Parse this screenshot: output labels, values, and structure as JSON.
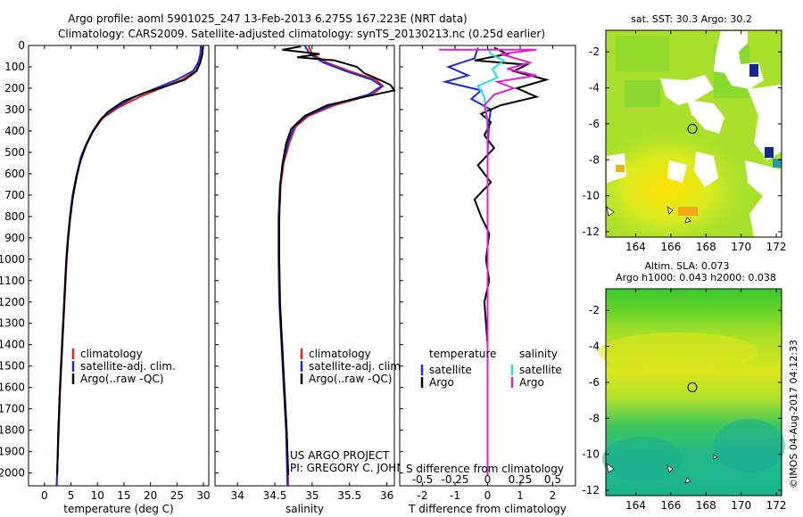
{
  "header": {
    "line1": "Argo profile: aoml 5901025_247 13-Feb-2013 6.275S 167.223E (NRT data)",
    "line2": "Climatology: CARS2009. Satellite-adjusted climatology: synTS_20130213.nc (0.25d earlier)"
  },
  "colors": {
    "climatology": "#e8201e",
    "satellite": "#1c2bd6",
    "argo": "#000000",
    "sal_satellite": "#22e0e0",
    "sal_argo": "#e020d0"
  },
  "chart_data": [
    {
      "type": "line",
      "name": "temperature-profile",
      "xlabel": "temperature (deg C)",
      "ylabel": "",
      "xlim": [
        -3,
        31
      ],
      "ylim": [
        2060,
        0
      ],
      "xticks": [
        0,
        5,
        10,
        15,
        20,
        25,
        30
      ],
      "yticks": [
        0,
        100,
        200,
        300,
        400,
        500,
        600,
        700,
        800,
        900,
        1000,
        1100,
        1200,
        1300,
        1400,
        1500,
        1600,
        1700,
        1800,
        1900,
        2000
      ],
      "legend": [
        "climatology",
        "satellite-adj. clim.",
        "Argo(..raw -QC)"
      ],
      "legend_position": "lower-center",
      "series": [
        {
          "name": "climatology",
          "color": "#e8201e",
          "points": [
            [
              29.8,
              0
            ],
            [
              29.7,
              40
            ],
            [
              29.3,
              80
            ],
            [
              28.5,
              120
            ],
            [
              26,
              160
            ],
            [
              22,
              200
            ],
            [
              18,
              240
            ],
            [
              14,
              290
            ],
            [
              11,
              340
            ],
            [
              9.2,
              400
            ],
            [
              8,
              460
            ],
            [
              7,
              520
            ],
            [
              6.2,
              600
            ],
            [
              5.4,
              700
            ],
            [
              4.9,
              800
            ],
            [
              4.5,
              900
            ],
            [
              4.2,
              1000
            ],
            [
              3.8,
              1200
            ],
            [
              3.4,
              1400
            ],
            [
              3.0,
              1600
            ],
            [
              2.7,
              1800
            ],
            [
              2.4,
              2000
            ],
            [
              2.3,
              2060
            ]
          ]
        },
        {
          "name": "satellite-adj. clim.",
          "color": "#1c2bd6",
          "points": [
            [
              29.5,
              0
            ],
            [
              29.4,
              40
            ],
            [
              29.0,
              80
            ],
            [
              28,
              120
            ],
            [
              25,
              160
            ],
            [
              21,
              200
            ],
            [
              17,
              240
            ],
            [
              13.5,
              290
            ],
            [
              10.8,
              340
            ],
            [
              9.1,
              400
            ],
            [
              7.9,
              460
            ],
            [
              6.9,
              520
            ],
            [
              6.1,
              600
            ],
            [
              5.3,
              700
            ],
            [
              4.8,
              800
            ],
            [
              4.4,
              900
            ],
            [
              4.1,
              1000
            ],
            [
              3.7,
              1200
            ],
            [
              3.3,
              1400
            ],
            [
              2.9,
              1600
            ],
            [
              2.6,
              1800
            ],
            [
              2.4,
              2000
            ],
            [
              2.3,
              2060
            ]
          ]
        },
        {
          "name": "Argo(..raw -QC)",
          "color": "#000000",
          "points": [
            [
              29.9,
              5
            ],
            [
              29.8,
              40
            ],
            [
              29.4,
              80
            ],
            [
              28.7,
              120
            ],
            [
              26.5,
              160
            ],
            [
              23,
              190
            ],
            [
              19,
              220
            ],
            [
              15,
              260
            ],
            [
              12,
              310
            ],
            [
              10.5,
              350
            ],
            [
              9,
              410
            ],
            [
              7.8,
              470
            ],
            [
              6.8,
              540
            ],
            [
              6,
              620
            ],
            [
              5.3,
              720
            ],
            [
              4.8,
              820
            ],
            [
              4.4,
              920
            ],
            [
              4.1,
              1020
            ],
            [
              3.7,
              1220
            ],
            [
              3.3,
              1420
            ],
            [
              2.9,
              1620
            ],
            [
              2.6,
              1820
            ],
            [
              2.4,
              2010
            ]
          ]
        }
      ]
    },
    {
      "type": "line",
      "name": "salinity-profile",
      "xlabel": "salinity",
      "xlim": [
        33.7,
        36.1
      ],
      "ylim": [
        2060,
        0
      ],
      "xticks": [
        34,
        34.5,
        35,
        35.5,
        36
      ],
      "legend": [
        "climatology",
        "satellite-adj. clim.",
        "Argo(..raw -QC)"
      ],
      "legend_position": "lower-center",
      "annotation": [
        "US ARGO PROJECT",
        "PI: GREGORY C. JOHNSON"
      ],
      "series": [
        {
          "name": "climatology",
          "color": "#e8201e",
          "points": [
            [
              34.95,
              0
            ],
            [
              35.0,
              40
            ],
            [
              35.2,
              80
            ],
            [
              35.5,
              120
            ],
            [
              35.85,
              160
            ],
            [
              35.95,
              190
            ],
            [
              35.8,
              230
            ],
            [
              35.3,
              280
            ],
            [
              34.95,
              330
            ],
            [
              34.78,
              380
            ],
            [
              34.7,
              450
            ],
            [
              34.62,
              550
            ],
            [
              34.58,
              650
            ],
            [
              34.56,
              800
            ],
            [
              34.56,
              1000
            ],
            [
              34.57,
              1200
            ],
            [
              34.6,
              1400
            ],
            [
              34.63,
              1600
            ],
            [
              34.66,
              1800
            ],
            [
              34.68,
              2060
            ]
          ]
        },
        {
          "name": "satellite-adj. clim.",
          "color": "#1c2bd6",
          "points": [
            [
              34.9,
              0
            ],
            [
              34.97,
              40
            ],
            [
              35.15,
              80
            ],
            [
              35.45,
              120
            ],
            [
              35.8,
              160
            ],
            [
              35.93,
              190
            ],
            [
              35.75,
              230
            ],
            [
              35.25,
              280
            ],
            [
              34.92,
              330
            ],
            [
              34.76,
              380
            ],
            [
              34.68,
              450
            ],
            [
              34.61,
              550
            ],
            [
              34.57,
              650
            ],
            [
              34.55,
              800
            ],
            [
              34.55,
              1000
            ],
            [
              34.56,
              1200
            ],
            [
              34.59,
              1400
            ],
            [
              34.62,
              1600
            ],
            [
              34.65,
              1800
            ],
            [
              34.67,
              2060
            ]
          ]
        },
        {
          "name": "Argo(..raw -QC)",
          "color": "#000000",
          "points": [
            [
              34.85,
              5
            ],
            [
              34.6,
              20
            ],
            [
              35.1,
              40
            ],
            [
              34.8,
              55
            ],
            [
              35.3,
              70
            ],
            [
              35.6,
              100
            ],
            [
              35.7,
              130
            ],
            [
              35.9,
              160
            ],
            [
              36.05,
              185
            ],
            [
              36.1,
              210
            ],
            [
              35.7,
              240
            ],
            [
              35.2,
              280
            ],
            [
              34.9,
              330
            ],
            [
              34.72,
              390
            ],
            [
              34.65,
              460
            ],
            [
              34.6,
              560
            ],
            [
              34.57,
              660
            ],
            [
              34.56,
              820
            ],
            [
              34.56,
              1020
            ],
            [
              34.57,
              1220
            ],
            [
              34.6,
              1420
            ],
            [
              34.63,
              1620
            ],
            [
              34.66,
              1820
            ],
            [
              34.68,
              2010
            ]
          ]
        }
      ]
    },
    {
      "type": "line",
      "name": "difference-profile",
      "xlabel": "T difference from climatology",
      "xlabel2": "S difference from climatology",
      "xlim": [
        -2.7,
        2.7
      ],
      "ylim": [
        2060,
        0
      ],
      "xticks": [
        -2,
        -1,
        0,
        1,
        2
      ],
      "xticks_sal": [
        -0.5,
        -0.25,
        0,
        0.25,
        0.5
      ],
      "legend_temp_title": "temperature",
      "legend_sal_title": "salinity",
      "legend_temp": [
        "satellite",
        "Argo"
      ],
      "legend_sal": [
        "satellite",
        "Argo"
      ],
      "series": [
        {
          "name": "T satellite",
          "color": "#1c2bd6",
          "points": [
            [
              -0.3,
              10
            ],
            [
              -0.4,
              60
            ],
            [
              -1.2,
              100
            ],
            [
              -0.6,
              140
            ],
            [
              -1.3,
              170
            ],
            [
              -0.2,
              210
            ],
            [
              -0.5,
              250
            ],
            [
              0.1,
              300
            ],
            [
              0.05,
              350
            ],
            [
              0,
              500
            ],
            [
              0,
              1000
            ],
            [
              0,
              1500
            ],
            [
              0,
              2010
            ]
          ]
        },
        {
          "name": "T Argo",
          "color": "#000000",
          "points": [
            [
              0.2,
              10
            ],
            [
              0.6,
              40
            ],
            [
              -0.4,
              70
            ],
            [
              1.2,
              90
            ],
            [
              0.8,
              120
            ],
            [
              1.8,
              160
            ],
            [
              0.9,
              200
            ],
            [
              1.5,
              240
            ],
            [
              0.4,
              280
            ],
            [
              -0.2,
              320
            ],
            [
              0.1,
              360
            ],
            [
              -0.1,
              420
            ],
            [
              0.2,
              480
            ],
            [
              -0.3,
              560
            ],
            [
              0.1,
              640
            ],
            [
              -0.4,
              720
            ],
            [
              -0.2,
              800
            ],
            [
              0.05,
              880
            ],
            [
              -0.05,
              1000
            ],
            [
              0.05,
              1100
            ],
            [
              -0.1,
              1200
            ],
            [
              0,
              1400
            ],
            [
              0,
              1700
            ],
            [
              0,
              2010
            ]
          ]
        },
        {
          "name": "S satellite",
          "color": "#22e0e0",
          "points": [
            [
              0,
              10
            ],
            [
              0.1,
              40
            ],
            [
              0.5,
              70
            ],
            [
              0.15,
              110
            ],
            [
              0.3,
              150
            ],
            [
              -0.3,
              190
            ],
            [
              -0.1,
              240
            ],
            [
              -0.05,
              300
            ],
            [
              0,
              400
            ],
            [
              0,
              800
            ],
            [
              0,
              1400
            ],
            [
              0,
              2010
            ]
          ]
        },
        {
          "name": "S Argo",
          "color": "#e020d0",
          "points": [
            [
              -1.5,
              20
            ],
            [
              1.0,
              20
            ],
            [
              1.5,
              20
            ],
            [
              0.4,
              40
            ],
            [
              1.3,
              80
            ],
            [
              0.6,
              110
            ],
            [
              1.5,
              140
            ],
            [
              0.3,
              170
            ],
            [
              0.8,
              200
            ],
            [
              0.2,
              230
            ],
            [
              -0.1,
              280
            ],
            [
              0,
              350
            ],
            [
              0,
              500
            ],
            [
              0,
              1000
            ],
            [
              0,
              2010
            ]
          ]
        }
      ]
    },
    {
      "type": "heatmap",
      "name": "sst-map",
      "title": "sat. SST: 30.3 Argo: 30.2",
      "xlim": [
        162.3,
        172.3
      ],
      "ylim": [
        -12.3,
        -0.8
      ],
      "xticks": [
        164,
        166,
        168,
        170,
        172
      ],
      "yticks": [
        -2,
        -4,
        -6,
        -8,
        -10,
        -12
      ],
      "float_position": [
        167.223,
        -6.275
      ]
    },
    {
      "type": "heatmap",
      "name": "sla-map",
      "title_line1": "Altim. SLA: 0.073",
      "title_line2": "Argo h1000: 0.043 h2000: 0.038",
      "xlim": [
        162.3,
        172.3
      ],
      "ylim": [
        -12.3,
        -0.8
      ],
      "xticks": [
        164,
        166,
        168,
        170,
        172
      ],
      "yticks": [
        -2,
        -4,
        -6,
        -8,
        -10,
        -12
      ],
      "float_position": [
        167.223,
        -6.275
      ]
    }
  ],
  "footer": {
    "stamp": "©IMOS 04-Aug-2017 04:12:33"
  }
}
